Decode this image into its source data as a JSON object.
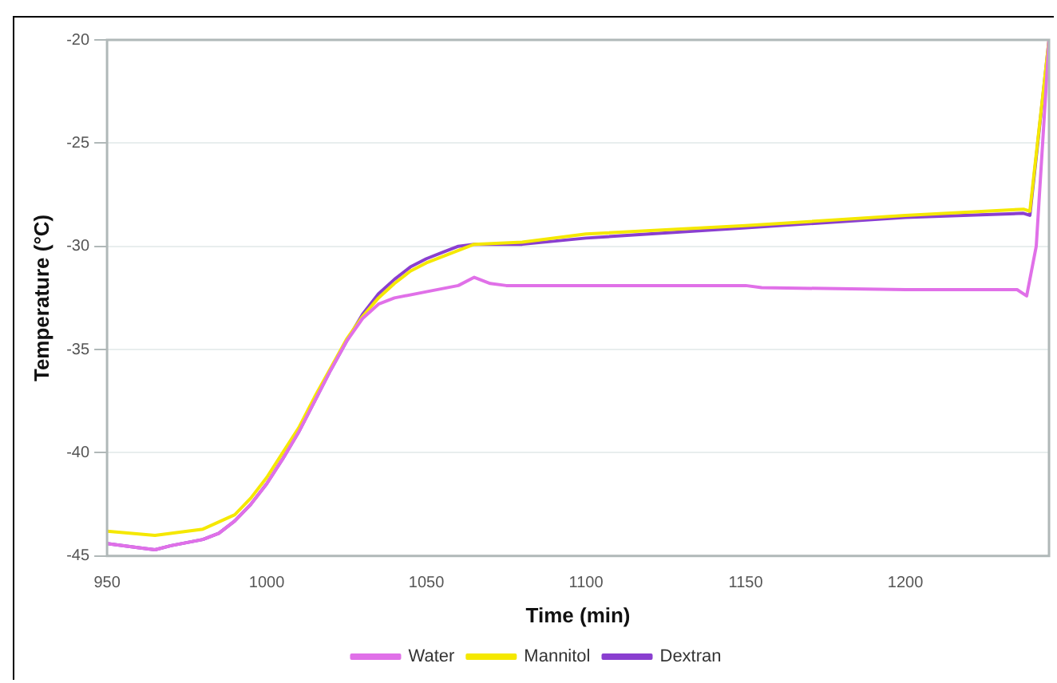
{
  "chart_data": {
    "type": "line",
    "xlabel": "Time (min)",
    "ylabel": "Temperature (°C)",
    "xlim": [
      950,
      1245
    ],
    "xticks": [
      950,
      1000,
      1050,
      1100,
      1150,
      1200
    ],
    "ylim": [
      -45,
      -20
    ],
    "yticks": [
      -45,
      -40,
      -35,
      -30,
      -25,
      -20
    ],
    "grid": "y",
    "legend": "bottom",
    "marker": "none",
    "line_style": "solid",
    "series": [
      {
        "name": "Water",
        "color": "#e070e8",
        "x": [
          950,
          960,
          965,
          970,
          980,
          985,
          990,
          995,
          1000,
          1005,
          1010,
          1015,
          1020,
          1025,
          1030,
          1035,
          1040,
          1050,
          1060,
          1065,
          1070,
          1075,
          1100,
          1150,
          1155,
          1200,
          1235,
          1238,
          1241,
          1245
        ],
        "values": [
          -44.4,
          -44.6,
          -44.7,
          -44.5,
          -44.2,
          -43.9,
          -43.3,
          -42.5,
          -41.5,
          -40.3,
          -39.0,
          -37.5,
          -36.0,
          -34.6,
          -33.5,
          -32.8,
          -32.5,
          -32.2,
          -31.9,
          -31.5,
          -31.8,
          -31.9,
          -31.9,
          -31.9,
          -32.0,
          -32.1,
          -32.1,
          -32.4,
          -30,
          -20
        ]
      },
      {
        "name": "Mannitol",
        "color": "#f5e800",
        "x": [
          950,
          965,
          980,
          990,
          995,
          1000,
          1005,
          1010,
          1015,
          1020,
          1025,
          1030,
          1035,
          1040,
          1045,
          1050,
          1060,
          1065,
          1080,
          1100,
          1150,
          1200,
          1237,
          1239,
          1245
        ],
        "values": [
          -43.8,
          -44.0,
          -43.7,
          -43.0,
          -42.2,
          -41.2,
          -40.0,
          -38.8,
          -37.3,
          -35.9,
          -34.5,
          -33.4,
          -32.5,
          -31.8,
          -31.2,
          -30.8,
          -30.2,
          -29.9,
          -29.8,
          -29.4,
          -29.0,
          -28.5,
          -28.2,
          -28.3,
          -20
        ]
      },
      {
        "name": "Dextran",
        "color": "#8a3fd0",
        "x": [
          950,
          960,
          965,
          970,
          980,
          985,
          990,
          995,
          1000,
          1005,
          1010,
          1015,
          1020,
          1025,
          1030,
          1035,
          1040,
          1045,
          1050,
          1055,
          1060,
          1065,
          1080,
          1100,
          1150,
          1200,
          1237,
          1239,
          1245
        ],
        "values": [
          -44.4,
          -44.6,
          -44.7,
          -44.5,
          -44.2,
          -43.9,
          -43.3,
          -42.5,
          -41.5,
          -40.3,
          -39.0,
          -37.5,
          -36.0,
          -34.6,
          -33.3,
          -32.3,
          -31.6,
          -31.0,
          -30.6,
          -30.3,
          -30.0,
          -29.9,
          -29.9,
          -29.6,
          -29.1,
          -28.6,
          -28.4,
          -28.5,
          -20
        ]
      }
    ]
  }
}
